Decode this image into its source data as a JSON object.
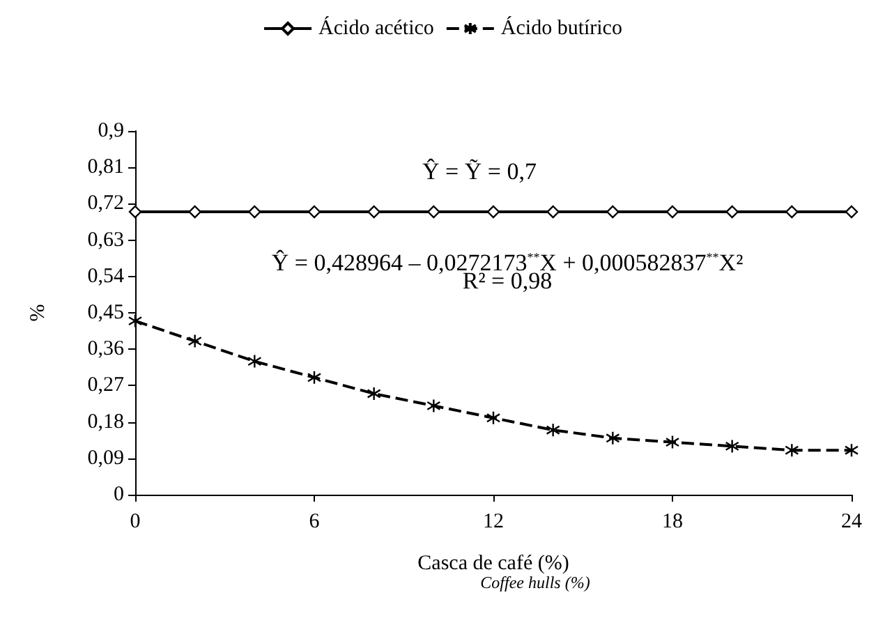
{
  "chart_data": {
    "type": "line",
    "xlabel": "Casca de café (%)",
    "ylabel": "%",
    "x": [
      0,
      2,
      4,
      6,
      8,
      10,
      12,
      14,
      16,
      18,
      20,
      22,
      24
    ],
    "series": [
      {
        "name": "Ácido acético",
        "color": "#000000",
        "marker": "diamond",
        "line_style": "solid",
        "values": [
          0.7,
          0.7,
          0.7,
          0.7,
          0.7,
          0.7,
          0.7,
          0.7,
          0.7,
          0.7,
          0.7,
          0.7,
          0.7
        ]
      },
      {
        "name": "Ácido butírico",
        "color": "#000000",
        "marker": "cross",
        "line_style": "dashed",
        "values": [
          0.43,
          0.38,
          0.33,
          0.29,
          0.25,
          0.22,
          0.19,
          0.16,
          0.14,
          0.13,
          0.12,
          0.11,
          0.11
        ]
      }
    ],
    "xlim": [
      0,
      24
    ],
    "xticks": [
      0,
      6,
      12,
      18,
      24
    ],
    "ylim": [
      0,
      0.9
    ],
    "yticks": [
      {
        "value": 0,
        "label": "0"
      },
      {
        "value": 0.09,
        "label": "0,09"
      },
      {
        "value": 0.18,
        "label": "0,18"
      },
      {
        "value": 0.27,
        "label": "0,27"
      },
      {
        "value": 0.36,
        "label": "0,36"
      },
      {
        "value": 0.45,
        "label": "0,45"
      },
      {
        "value": 0.54,
        "label": "0,54"
      },
      {
        "value": 0.63,
        "label": "0,63"
      },
      {
        "value": 0.72,
        "label": "0,72"
      },
      {
        "value": 0.81,
        "label": "0,81"
      },
      {
        "value": 0.9,
        "label": "0,9"
      }
    ],
    "annotations": [
      "Ŷ = Ỹ = 0,7",
      "Ŷ = 0,428964 – 0,0272173$^{**}$X + 0,000582837$^{**}$X²",
      "R² = 0,98",
      "Coffee hulls (%)"
    ],
    "legend": "top",
    "grid": false
  }
}
